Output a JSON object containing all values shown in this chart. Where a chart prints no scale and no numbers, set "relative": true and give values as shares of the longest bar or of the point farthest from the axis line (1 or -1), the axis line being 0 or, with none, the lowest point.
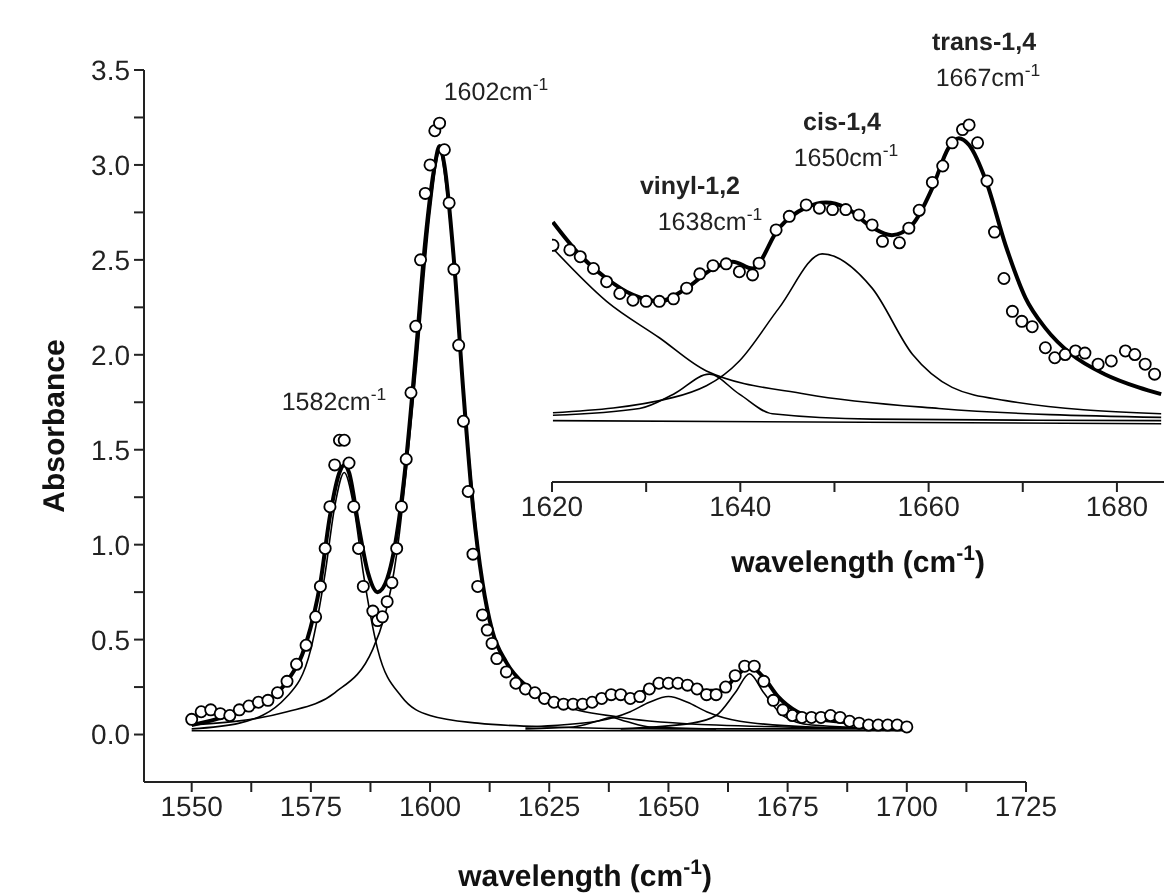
{
  "chart_data": [
    {
      "type": "line",
      "xlabel": "wavelength (cm$^{-1}$)",
      "ylabel": "Absorbance",
      "xlim": [
        1540,
        1725
      ],
      "ylim": [
        -0.25,
        3.5
      ],
      "xticks": [
        1550,
        {
          "value": 1562.5,
          "label": null
        },
        1575,
        {
          "value": 1587.5,
          "label": null
        },
        1600,
        {
          "value": 1612.5,
          "label": null
        },
        1625,
        {
          "value": 1637.5,
          "label": null
        },
        1650,
        {
          "value": 1662.5,
          "label": null
        },
        1675,
        {
          "value": 1687.5,
          "label": null
        },
        1700,
        {
          "value": 1712.5,
          "label": null
        },
        1725
      ],
      "yticks": [
        {
          "value": 0,
          "label": "0.0"
        },
        {
          "value": 0.25,
          "label": null
        },
        0.5,
        {
          "value": 0.75,
          "label": null
        },
        {
          "value": 1,
          "label": "1.0"
        },
        {
          "value": 1.25,
          "label": null
        },
        1.5,
        {
          "value": 1.75,
          "label": null
        },
        {
          "value": 2,
          "label": "2.0"
        },
        {
          "value": 2.25,
          "label": null
        },
        2.5,
        {
          "value": 2.75,
          "label": null
        },
        {
          "value": 3,
          "label": "3.0"
        },
        {
          "value": 3.25,
          "label": null
        },
        3.5
      ],
      "line_style": "solid",
      "annotations": [
        "1582cm$^{-1}$",
        "1602cm$^{-1}$"
      ],
      "series": [
        {
          "type": "scatter",
          "marker": "circle",
          "color": "#000000",
          "x": [
            1550,
            1552,
            1554,
            1556,
            1558,
            1560,
            1562,
            1564,
            1566,
            1568,
            1570,
            1572,
            1574,
            1576,
            1577,
            1578,
            1579,
            1580,
            1581,
            1582,
            1583,
            1584,
            1585,
            1586,
            1588,
            1589,
            1590,
            1591,
            1592,
            1593,
            1594,
            1595,
            1596,
            1597,
            1598,
            1599,
            1600,
            1601,
            1602,
            1603,
            1604,
            1605,
            1606,
            1607,
            1608,
            1609,
            1610,
            1611,
            1612,
            1613,
            1614,
            1616,
            1618,
            1620,
            1622,
            1624,
            1626,
            1628,
            1630,
            1632,
            1634,
            1636,
            1638,
            1640,
            1642,
            1644,
            1646,
            1648,
            1650,
            1652,
            1654,
            1656,
            1658,
            1660,
            1662,
            1664,
            1666,
            1668,
            1670,
            1672,
            1674,
            1676,
            1678,
            1680,
            1682,
            1684,
            1686,
            1688,
            1690,
            1692,
            1694,
            1696,
            1698,
            1700
          ],
          "values": [
            0.08,
            0.12,
            0.13,
            0.11,
            0.1,
            0.13,
            0.15,
            0.17,
            0.18,
            0.22,
            0.28,
            0.37,
            0.47,
            0.62,
            0.78,
            0.98,
            1.2,
            1.42,
            1.55,
            1.55,
            1.43,
            1.2,
            0.98,
            0.78,
            0.65,
            0.6,
            0.62,
            0.7,
            0.8,
            0.98,
            1.2,
            1.45,
            1.8,
            2.15,
            2.5,
            2.85,
            3.0,
            3.18,
            3.22,
            3.08,
            2.8,
            2.45,
            2.05,
            1.65,
            1.28,
            0.95,
            0.78,
            0.63,
            0.55,
            0.48,
            0.4,
            0.33,
            0.27,
            0.24,
            0.22,
            0.19,
            0.17,
            0.16,
            0.16,
            0.16,
            0.17,
            0.19,
            0.21,
            0.21,
            0.19,
            0.2,
            0.24,
            0.27,
            0.27,
            0.27,
            0.26,
            0.24,
            0.21,
            0.21,
            0.25,
            0.31,
            0.36,
            0.36,
            0.28,
            0.18,
            0.13,
            0.1,
            0.09,
            0.09,
            0.09,
            0.1,
            0.09,
            0.07,
            0.06,
            0.05,
            0.05,
            0.05,
            0.05,
            0.04
          ]
        },
        {
          "type": "line",
          "color": "#000000",
          "x": [
            1550,
            1555,
            1560,
            1565,
            1570,
            1574,
            1577,
            1579,
            1581,
            1582,
            1583,
            1585,
            1587,
            1589,
            1591,
            1593,
            1595,
            1597,
            1599,
            1601,
            1602,
            1603,
            1605,
            1607,
            1609,
            1611,
            1613,
            1616,
            1620,
            1625,
            1630,
            1635,
            1638,
            1642,
            1646,
            1650,
            1654,
            1658,
            1661,
            1664,
            1667,
            1670,
            1673,
            1677,
            1682,
            1690,
            1700
          ],
          "values": [
            0.05,
            0.08,
            0.12,
            0.17,
            0.28,
            0.48,
            0.8,
            1.15,
            1.38,
            1.42,
            1.38,
            1.1,
            0.85,
            0.75,
            0.82,
            1.05,
            1.45,
            2.0,
            2.6,
            3.0,
            3.1,
            3.0,
            2.5,
            1.8,
            1.2,
            0.8,
            0.55,
            0.38,
            0.26,
            0.19,
            0.17,
            0.18,
            0.2,
            0.2,
            0.24,
            0.27,
            0.26,
            0.23,
            0.23,
            0.3,
            0.36,
            0.3,
            0.2,
            0.12,
            0.08,
            0.06,
            0.05
          ]
        },
        {
          "type": "line",
          "color": "#000000",
          "x": [
            1550,
            1560,
            1570,
            1575,
            1578,
            1580,
            1582,
            1584,
            1586,
            1589,
            1594,
            1600,
            1610,
            1625,
            1650,
            1700
          ],
          "values": [
            0.03,
            0.06,
            0.2,
            0.45,
            0.85,
            1.2,
            1.38,
            1.2,
            0.85,
            0.45,
            0.2,
            0.1,
            0.06,
            0.04,
            0.03,
            0.03
          ]
        },
        {
          "type": "line",
          "color": "#000000",
          "x": [
            1550,
            1570,
            1580,
            1588,
            1593,
            1597,
            1600,
            1602,
            1604,
            1607,
            1611,
            1616,
            1625,
            1640,
            1660,
            1700
          ],
          "values": [
            0.05,
            0.12,
            0.22,
            0.45,
            0.95,
            1.9,
            2.75,
            3.07,
            2.75,
            1.8,
            0.8,
            0.38,
            0.18,
            0.09,
            0.05,
            0.03
          ]
        },
        {
          "type": "line",
          "color": "#000000",
          "x": [
            1620,
            1630,
            1635,
            1638,
            1641,
            1646,
            1660
          ],
          "values": [
            0.03,
            0.04,
            0.07,
            0.09,
            0.07,
            0.04,
            0.03
          ]
        },
        {
          "type": "line",
          "color": "#000000",
          "x": [
            1620,
            1635,
            1642,
            1646,
            1650,
            1654,
            1658,
            1665,
            1680,
            1700
          ],
          "values": [
            0.04,
            0.07,
            0.12,
            0.17,
            0.2,
            0.17,
            0.12,
            0.07,
            0.04,
            0.03
          ]
        },
        {
          "type": "line",
          "color": "#000000",
          "x": [
            1640,
            1655,
            1660,
            1664,
            1667,
            1670,
            1674,
            1680,
            1700
          ],
          "values": [
            0.03,
            0.06,
            0.1,
            0.22,
            0.32,
            0.22,
            0.1,
            0.05,
            0.03
          ]
        },
        {
          "type": "line",
          "color": "#000000",
          "x": [
            1550,
            1700
          ],
          "values": [
            0.02,
            0.02
          ]
        }
      ]
    },
    {
      "type": "line",
      "relative": true,
      "xlabel": "wavelength (cm$^{-1}$)",
      "xlim": [
        1620,
        1685
      ],
      "xticks": [
        1620,
        {
          "value": 1630,
          "label": null
        },
        1640,
        {
          "value": 1650,
          "label": null
        },
        1660,
        {
          "value": 1670,
          "label": null
        },
        1680
      ],
      "tick_labels": "x",
      "line_style": "solid",
      "annotations": [
        "vinyl-1,2",
        "1638cm$^{-1}$",
        "cis-1,4",
        "1650cm$^{-1}$",
        "trans-1,4",
        "1667cm$^{-1}$"
      ],
      "series": [
        {
          "type": "scatter",
          "marker": "circle",
          "color": "#000000",
          "x": [
            1620.1,
            1621.9,
            1623.0,
            1624.4,
            1625.8,
            1627.2,
            1628.6,
            1630.0,
            1631.4,
            1632.9,
            1634.3,
            1635.7,
            1637.1,
            1638.5,
            1639.9,
            1641.3,
            1642.0,
            1643.8,
            1645.2,
            1647.0,
            1648.4,
            1649.8,
            1651.2,
            1652.6,
            1654.0,
            1655.1,
            1656.9,
            1657.9,
            1659.0,
            1660.4,
            1661.5,
            1662.5,
            1663.6,
            1664.3,
            1665.2,
            1666.2,
            1667.0,
            1668.0,
            1668.9,
            1669.9,
            1671.0,
            1672.4,
            1673.4,
            1674.5,
            1675.6,
            1676.6,
            1678.0,
            1679.4,
            1680.9,
            1681.9,
            1683.0,
            1684.0
          ],
          "values": [
            0.663,
            0.65,
            0.631,
            0.598,
            0.561,
            0.528,
            0.509,
            0.506,
            0.506,
            0.513,
            0.543,
            0.583,
            0.606,
            0.611,
            0.589,
            0.58,
            0.613,
            0.706,
            0.744,
            0.776,
            0.767,
            0.763,
            0.763,
            0.748,
            0.72,
            0.674,
            0.67,
            0.711,
            0.761,
            0.839,
            0.885,
            0.95,
            0.987,
            1,
            0.95,
            0.843,
            0.7,
            0.57,
            0.478,
            0.45,
            0.435,
            0.376,
            0.348,
            0.357,
            0.367,
            0.361,
            0.33,
            0.339,
            0.367,
            0.357,
            0.33,
            0.302
          ]
        },
        {
          "type": "line",
          "color": "#000000",
          "x": [
            1620.1,
            1623.0,
            1625.8,
            1628.6,
            1631.4,
            1634.3,
            1637.1,
            1639.2,
            1641.3,
            1644.1,
            1647.0,
            1649.1,
            1651.2,
            1654.0,
            1656.1,
            1658.3,
            1660.4,
            1662.1,
            1663.2,
            1664.3,
            1666.1,
            1668.2,
            1670.3,
            1672.4,
            1675.2,
            1678.7,
            1682.3,
            1684.7
          ],
          "values": [
            0.728,
            0.635,
            0.57,
            0.524,
            0.506,
            0.543,
            0.598,
            0.617,
            0.598,
            0.711,
            0.769,
            0.783,
            0.769,
            0.713,
            0.691,
            0.722,
            0.824,
            0.935,
            0.963,
            0.944,
            0.843,
            0.661,
            0.515,
            0.431,
            0.357,
            0.302,
            0.265,
            0.246
          ]
        },
        {
          "type": "line",
          "color": "#000000",
          "x": [
            1620.1,
            1625.8,
            1631.4,
            1636.4,
            1647.0,
            1661.1,
            1684.7
          ],
          "values": [
            0.654,
            0.506,
            0.404,
            0.311,
            0.246,
            0.206,
            0.181
          ]
        },
        {
          "type": "line",
          "color": "#000000",
          "x": [
            1620.1,
            1629.3,
            1632.9,
            1636.7,
            1639.9,
            1643.4,
            1654.0,
            1684.7
          ],
          "values": [
            0.187,
            0.206,
            0.246,
            0.302,
            0.246,
            0.191,
            0.176,
            0.172
          ]
        },
        {
          "type": "line",
          "color": "#000000",
          "x": [
            1620.1,
            1632.9,
            1639.9,
            1644.1,
            1648.7,
            1654.0,
            1658.3,
            1662.5,
            1668.2,
            1684.7
          ],
          "values": [
            0.194,
            0.237,
            0.339,
            0.487,
            0.639,
            0.543,
            0.357,
            0.265,
            0.228,
            0.191
          ]
        },
        {
          "type": "line",
          "color": "#000000",
          "x": [
            1620.1,
            1684.7
          ],
          "values": [
            0.172,
            0.163
          ]
        }
      ]
    }
  ]
}
